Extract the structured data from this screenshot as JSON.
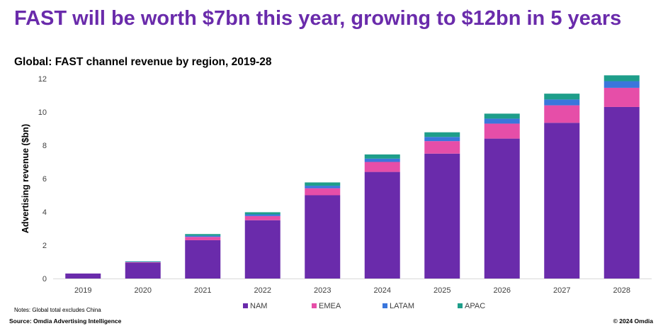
{
  "headline": "FAST will be worth $7bn this year, growing to $12bn in 5 years",
  "notes": "Notes: Global total excludes China",
  "source": "Source: Omdia Advertising Intelligence",
  "copyright": "© 2024 Omdia",
  "chart_data": {
    "type": "bar",
    "stacked": true,
    "title": "Global: FAST channel revenue by region, 2019-28",
    "xlabel": "",
    "ylabel": "Advertising revenue ($bn)",
    "ylim": [
      0,
      12
    ],
    "yticks": [
      0,
      2,
      4,
      6,
      8,
      10,
      12
    ],
    "grid": false,
    "legend_position": "bottom",
    "categories": [
      "2019",
      "2020",
      "2021",
      "2022",
      "2023",
      "2024",
      "2025",
      "2026",
      "2027",
      "2028"
    ],
    "series": [
      {
        "name": "NAM",
        "color": "#6a2bab",
        "values": [
          0.3,
          0.95,
          2.3,
          3.5,
          5.0,
          6.4,
          7.5,
          8.4,
          9.35,
          10.3
        ]
      },
      {
        "name": "EMEA",
        "color": "#e64ea8",
        "values": [
          0.0,
          0.03,
          0.2,
          0.25,
          0.42,
          0.6,
          0.75,
          0.9,
          1.05,
          1.15
        ]
      },
      {
        "name": "LATAM",
        "color": "#3a76dc",
        "values": [
          0.0,
          0.02,
          0.07,
          0.1,
          0.15,
          0.2,
          0.25,
          0.3,
          0.35,
          0.4
        ]
      },
      {
        "name": "APAC",
        "color": "#1e9e8a",
        "values": [
          0.0,
          0.03,
          0.1,
          0.13,
          0.2,
          0.25,
          0.28,
          0.3,
          0.35,
          0.35
        ]
      }
    ]
  }
}
